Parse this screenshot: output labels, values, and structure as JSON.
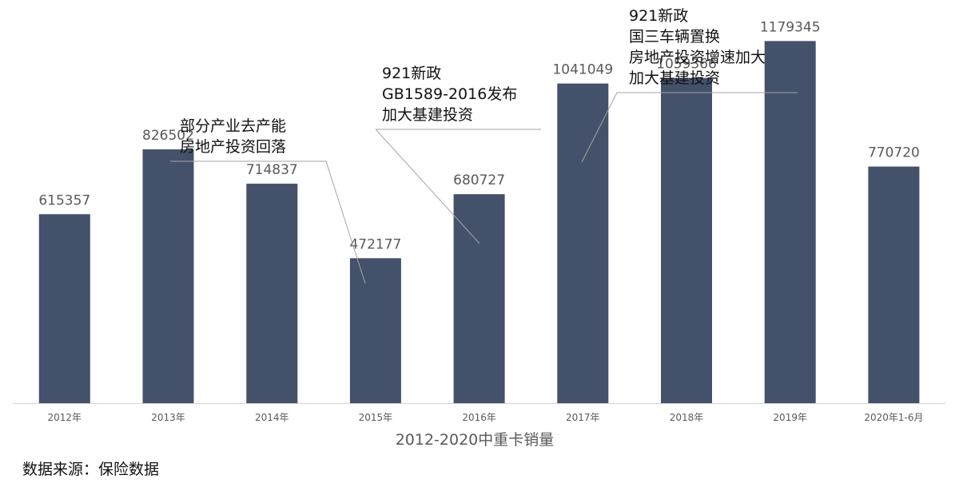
{
  "chart_data": {
    "type": "bar",
    "title": "2012-2020中重卡销量",
    "categories": [
      "2012年",
      "2013年",
      "2014年",
      "2015年",
      "2016年",
      "2017年",
      "2018年",
      "2019年",
      "2020年1-6月"
    ],
    "values": [
      615357,
      826502,
      714837,
      472177,
      680727,
      1041049,
      1059366,
      1179345,
      770720
    ],
    "data_labels": [
      "615357",
      "826502",
      "714837",
      "472177",
      "680727",
      "1041049",
      "1059366",
      "1179345",
      "770720"
    ],
    "ylim": [
      0,
      1300000
    ],
    "grid": false,
    "bar_color": "#44516a",
    "annotations": [
      {
        "target_category": "2015年",
        "lines": [
          "部分产业去产能",
          "房地产投资回落"
        ]
      },
      {
        "target_category": "2016年",
        "lines": [
          "921新政",
          "GB1589-2016发布",
          "加大基建投资"
        ]
      },
      {
        "target_category": "2017年",
        "lines": [
          "921新政",
          "国三车辆置换",
          "房地产投资增速加大",
          "加大基建投资"
        ]
      }
    ]
  },
  "source_note": "数据来源：保险数据"
}
